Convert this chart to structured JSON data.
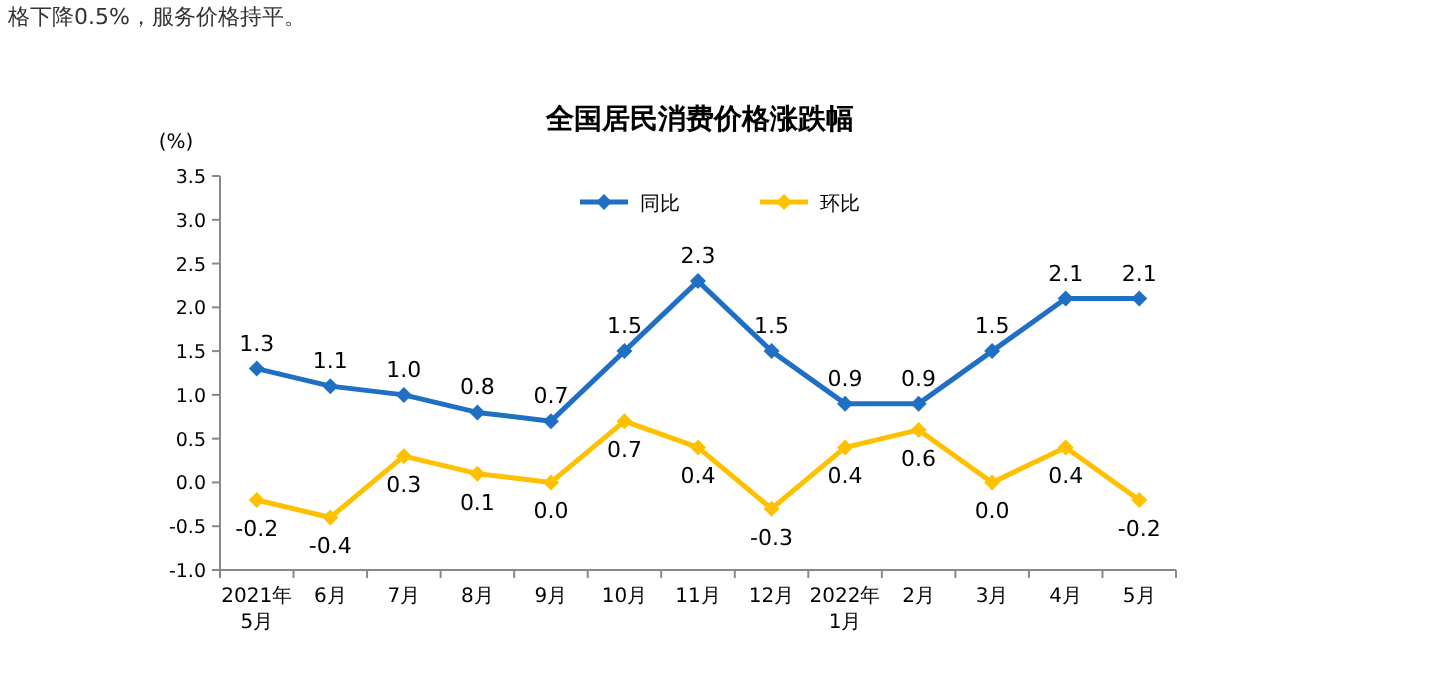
{
  "chart_data": {
    "type": "line",
    "title": "全国居民消费价格涨跌幅",
    "ylabel": "(%)",
    "annotations": [
      "格下降0.5%，服务价格持平。"
    ],
    "categories": [
      "2021年\n5月",
      "6月",
      "7月",
      "8月",
      "9月",
      "10月",
      "11月",
      "12月",
      "2022年\n1月",
      "2月",
      "3月",
      "4月",
      "5月"
    ],
    "series": [
      {
        "name": "同比",
        "color": "#1f6fc5",
        "values": [
          1.3,
          1.1,
          1.0,
          0.8,
          0.7,
          1.5,
          2.3,
          1.5,
          0.9,
          0.9,
          1.5,
          2.1,
          2.1
        ],
        "value_labels": [
          "1.3",
          "1.1",
          "1.0",
          "0.8",
          "0.7",
          "1.5",
          "2.3",
          "1.5",
          "0.9",
          "0.9",
          "1.5",
          "2.1",
          "2.1"
        ]
      },
      {
        "name": "环比",
        "color": "#ffc000",
        "values": [
          -0.2,
          -0.4,
          0.3,
          0.1,
          0.0,
          0.7,
          0.4,
          -0.3,
          0.4,
          0.6,
          0.0,
          0.4,
          -0.2
        ],
        "value_labels": [
          "-0.2",
          "-0.4",
          "0.3",
          "0.1",
          "0.0",
          "0.7",
          "0.4",
          "-0.3",
          "0.4",
          "0.6",
          "0.0",
          "0.4",
          "-0.2"
        ]
      }
    ],
    "ylim": [
      -1.0,
      3.5
    ],
    "yticks": [
      {
        "value": -1.0,
        "label": "-1.0"
      },
      {
        "value": -0.5,
        "label": "-0.5"
      },
      {
        "value": 0,
        "label": "0.0"
      },
      {
        "value": 0.5,
        "label": "0.5"
      },
      {
        "value": 1.0,
        "label": "1.0"
      },
      {
        "value": 1.5,
        "label": "1.5"
      },
      {
        "value": 2.0,
        "label": "2.0"
      },
      {
        "value": 2.5,
        "label": "2.5"
      },
      {
        "value": 3.0,
        "label": "3.0"
      },
      {
        "value": 3.5,
        "label": "3.5"
      }
    ],
    "legend": "top",
    "marker": "diamond",
    "line_style": "solid",
    "grid": false
  }
}
